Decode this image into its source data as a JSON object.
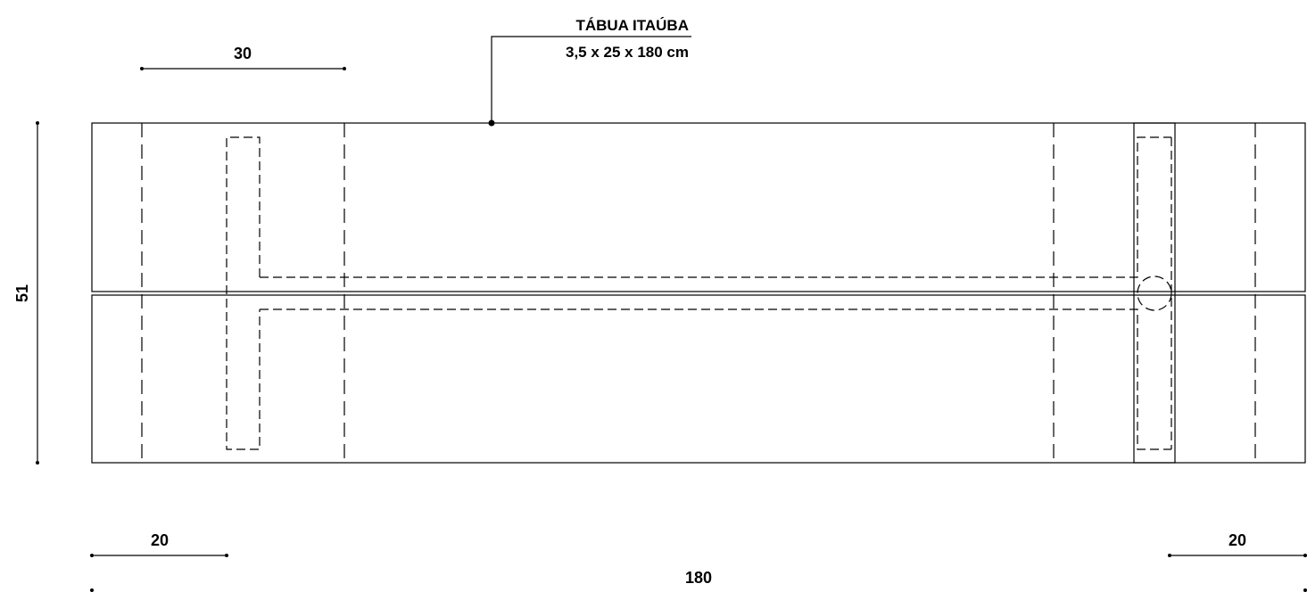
{
  "label": {
    "title": "TÁBUA ITAÚBA",
    "size": "3,5 x 25 x 180 cm"
  },
  "dimensions": {
    "top_span": "30",
    "height": "51",
    "left_span": "20",
    "right_span": "20",
    "total_length": "180"
  }
}
